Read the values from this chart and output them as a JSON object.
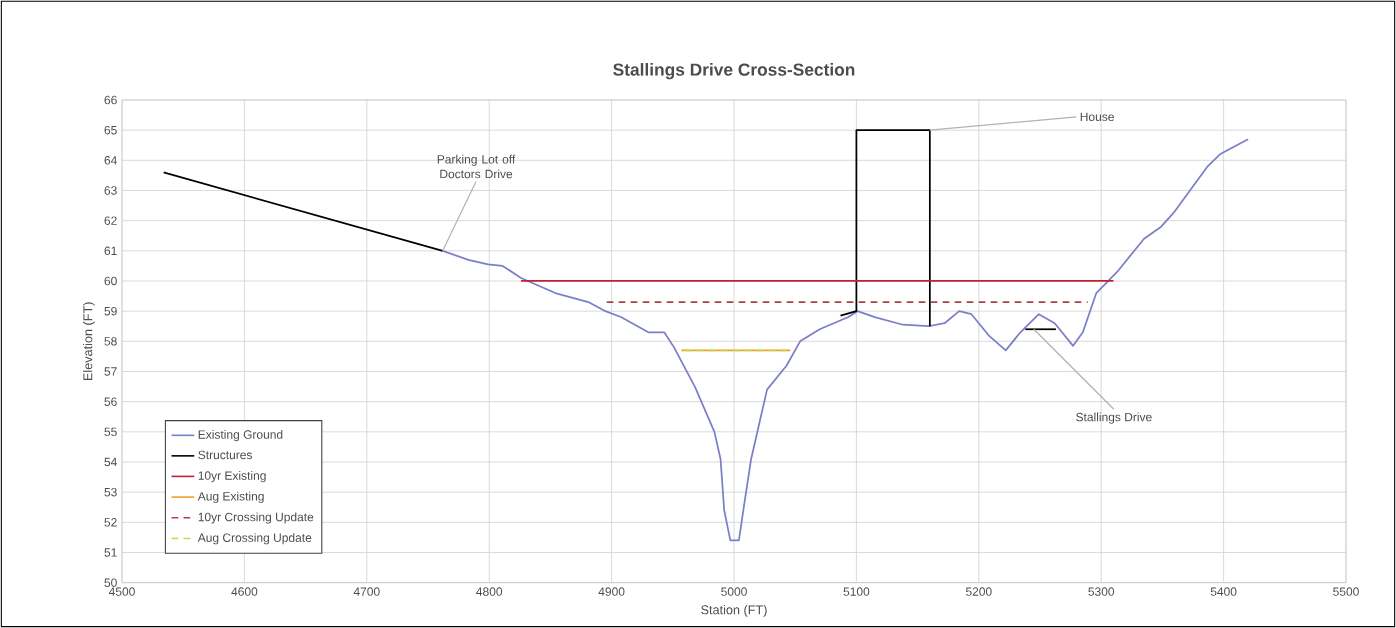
{
  "chart_data": {
    "type": "line",
    "title": "Stallings Drive Cross-Section",
    "xlabel": "Station (FT)",
    "ylabel": "Elevation (FT)",
    "xlim": [
      4500,
      5500
    ],
    "xticks": [
      4500,
      4600,
      4700,
      4800,
      4900,
      5000,
      5100,
      5200,
      5300,
      5400,
      5500
    ],
    "ylim": [
      50,
      66
    ],
    "yticks": [
      50,
      51,
      52,
      53,
      54,
      55,
      56,
      57,
      58,
      59,
      60,
      61,
      62,
      63,
      64,
      65,
      66
    ],
    "grid": true,
    "legend": "bottom left",
    "marker": "none",
    "series": [
      {
        "name": "Existing Ground",
        "color": "#7b7fc8",
        "line_style": "solid",
        "x": [
          4762,
          4783,
          4799,
          4811,
          4826,
          4854,
          4881,
          4895,
          4908,
          4930,
          4943,
          4951,
          4968,
          4984,
          4989,
          4992,
          4997,
          5004,
          5008,
          5014,
          5027,
          5043,
          5054,
          5070,
          5093,
          5101,
          5115,
          5138,
          5159,
          5172,
          5184,
          5194,
          5208,
          5222,
          5234,
          5249,
          5262,
          5277,
          5285,
          5296,
          5313,
          5335,
          5349,
          5360,
          5387,
          5397,
          5420
        ],
        "values": [
          61.0,
          60.7,
          60.55,
          60.5,
          60.1,
          59.6,
          59.3,
          59.0,
          58.8,
          58.3,
          58.3,
          57.8,
          56.5,
          55.0,
          54.1,
          52.4,
          51.4,
          51.4,
          52.5,
          54.1,
          56.4,
          57.2,
          58.0,
          58.4,
          58.8,
          59.0,
          58.8,
          58.55,
          58.5,
          58.6,
          59.0,
          58.9,
          58.2,
          57.7,
          58.3,
          58.9,
          58.6,
          57.85,
          58.3,
          59.6,
          60.3,
          61.4,
          61.8,
          62.3,
          63.8,
          64.2,
          64.7
        ]
      },
      {
        "name": "Structures",
        "color": "#000000",
        "line_style": "solid",
        "x": [
          4534,
          4762
        ],
        "values": [
          63.6,
          61.0
        ]
      },
      {
        "color": "#000000",
        "line_style": "solid",
        "x": [
          5087,
          5100,
          5100,
          5160,
          5160
        ],
        "values": [
          58.85,
          59.0,
          65.0,
          65.0,
          58.5
        ]
      },
      {
        "color": "#000000",
        "line_style": "solid",
        "x": [
          5238,
          5263
        ],
        "values": [
          58.4,
          58.4
        ]
      },
      {
        "name": "10yr Existing",
        "color": "#c0222f",
        "line_style": "solid",
        "x": [
          4826,
          5310
        ],
        "values": [
          60.0,
          60.0
        ]
      },
      {
        "name": "Aug Existing",
        "color": "#f0a030",
        "line_style": "solid",
        "x": [
          4957,
          5046
        ],
        "values": [
          57.7,
          57.7
        ]
      },
      {
        "name": "10yr Crossing Update",
        "color": "#b04048",
        "line_style": "dashed",
        "x": [
          4896,
          5289
        ],
        "values": [
          59.3,
          59.3
        ]
      },
      {
        "name": "Aug Crossing Update",
        "color": "#c8d84a",
        "line_style": "dashed",
        "x": [
          4960,
          5043
        ],
        "values": [
          57.7,
          57.7
        ]
      }
    ],
    "annotations": [
      {
        "text": "Parking Lot off Doctors Drive",
        "x": 4762,
        "y": 61.0
      },
      {
        "text": "House",
        "x": 5160,
        "y": 65.0
      },
      {
        "text": "Stallings Drive",
        "x": 5245,
        "y": 58.4
      }
    ]
  }
}
